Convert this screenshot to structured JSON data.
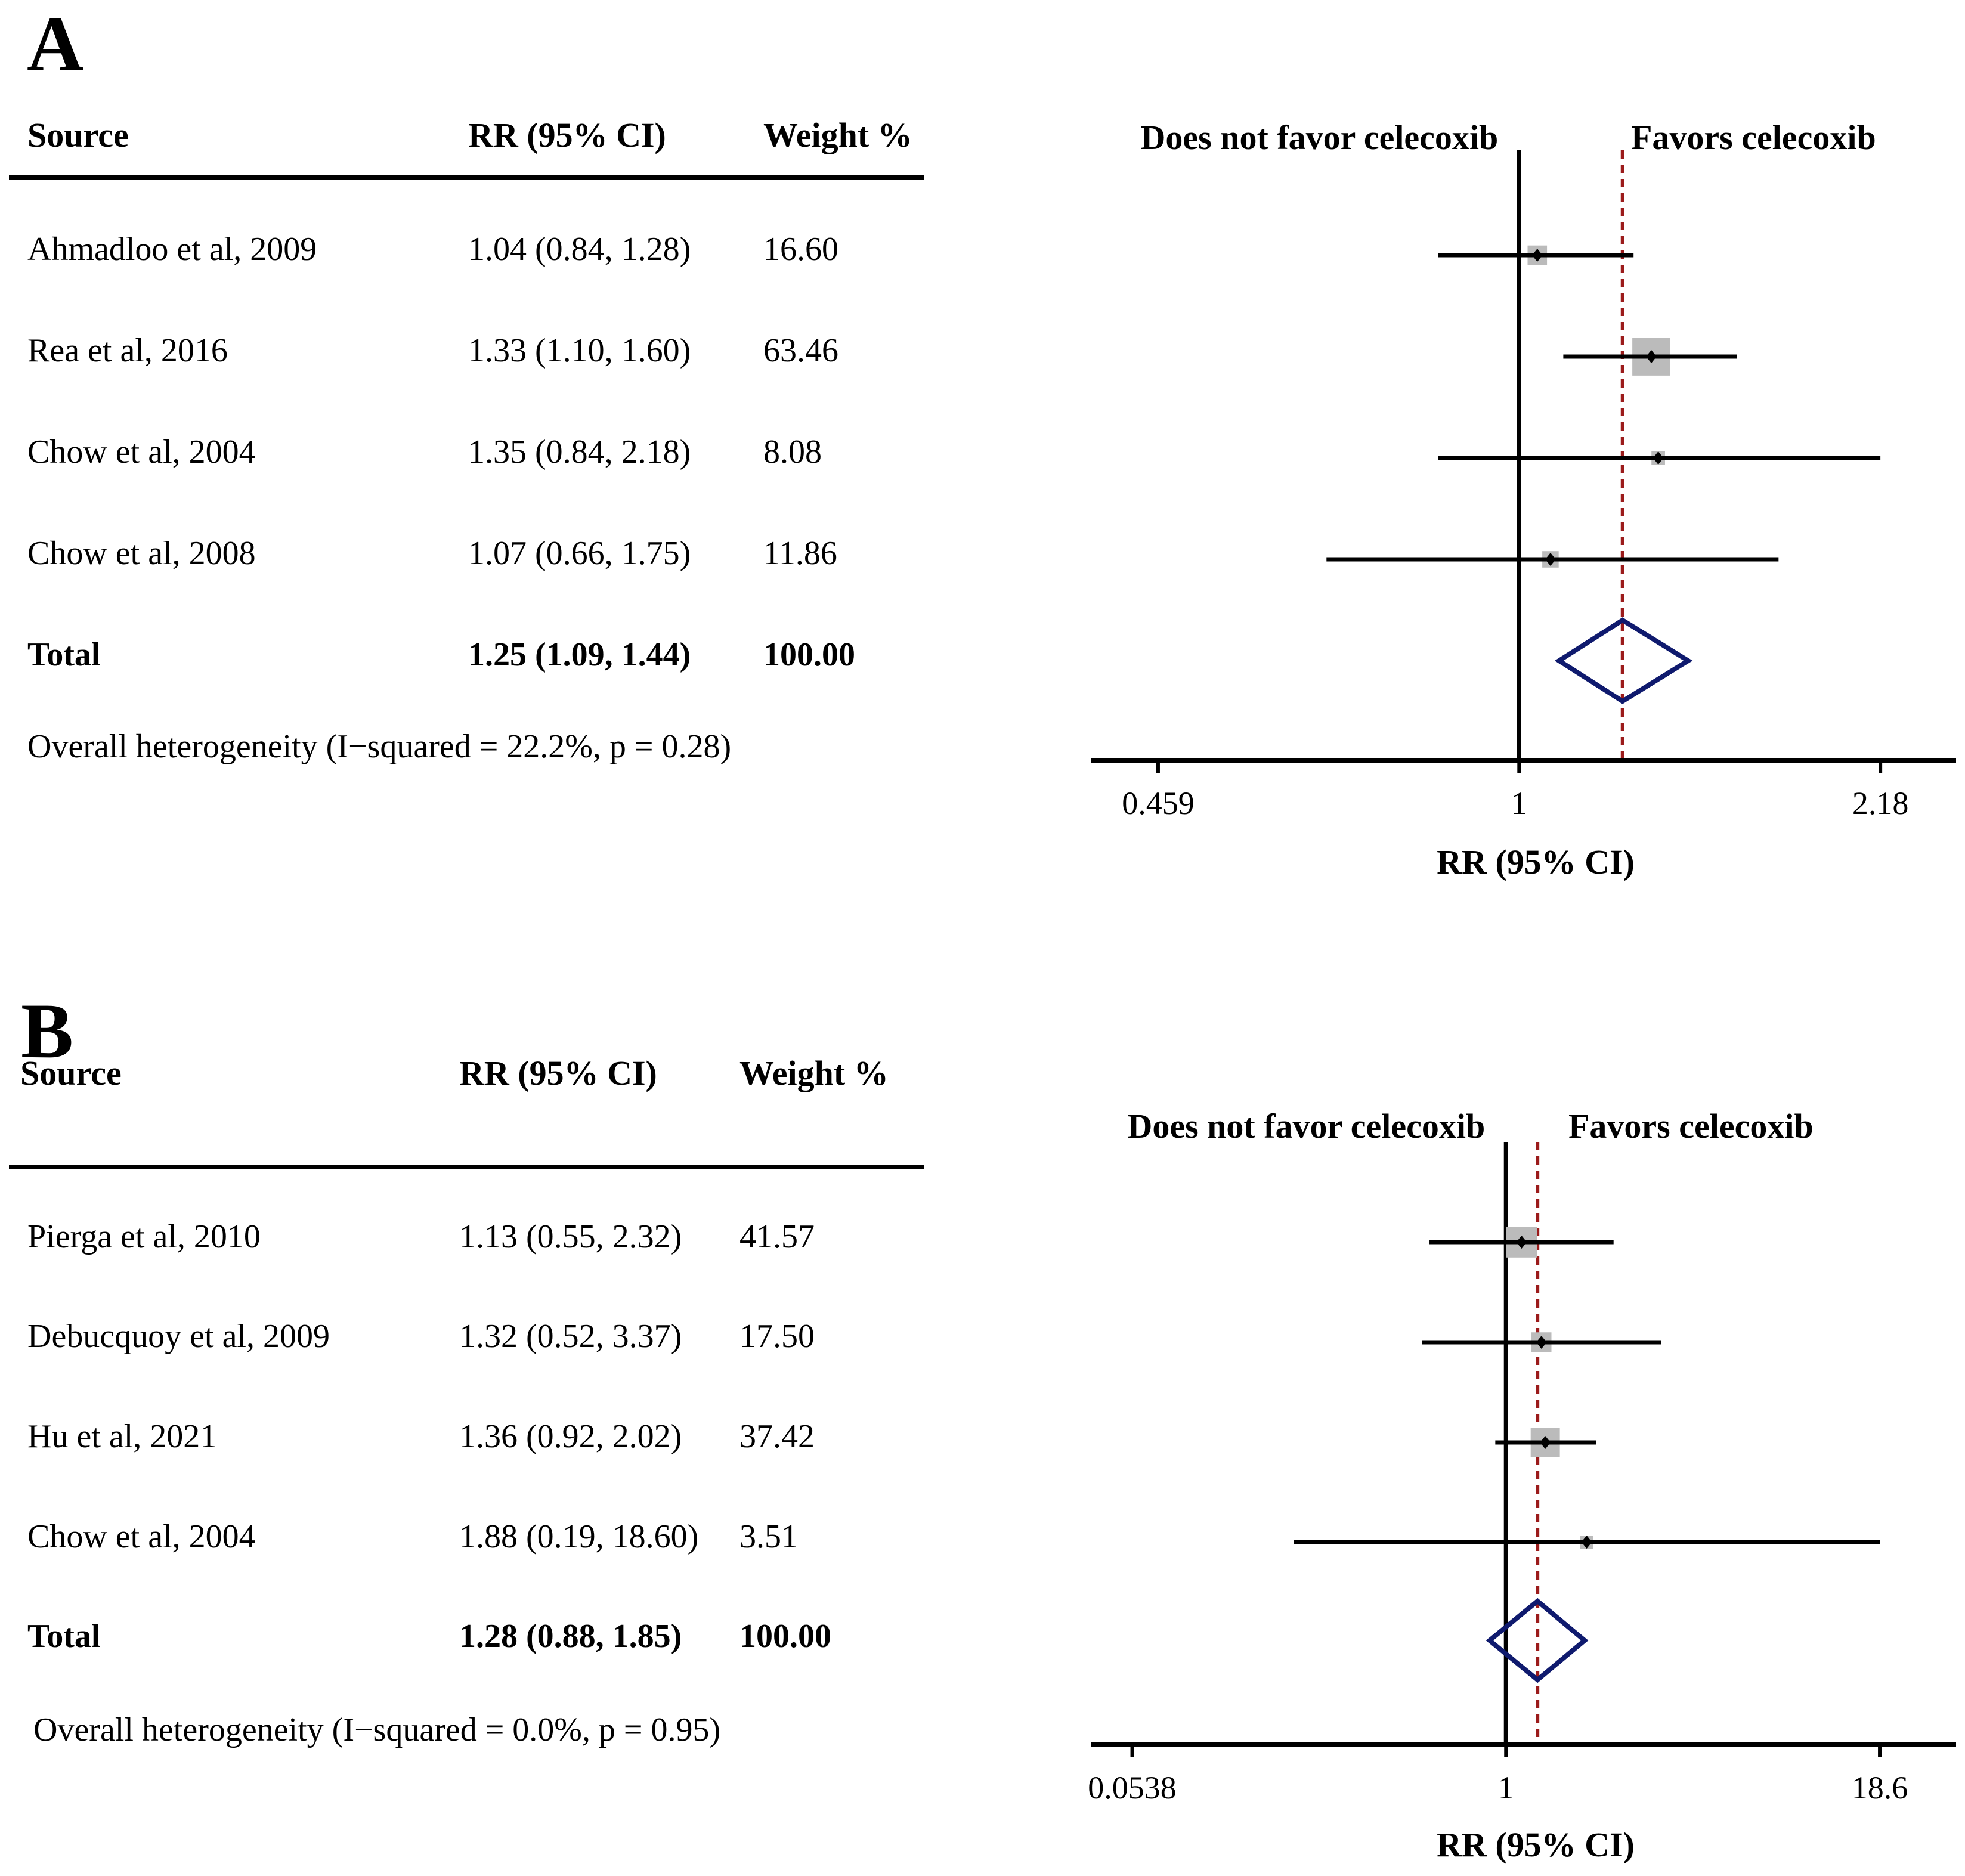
{
  "chart_data": [
    {
      "panel": "A",
      "type": "forest",
      "columns": {
        "source": "Source",
        "rr": "RR (95% CI)",
        "weight": "Weight %"
      },
      "direction_left": "Does not favor celecoxib",
      "direction_right": "Favors celecoxib",
      "rows": [
        {
          "source": "Ahmadloo et al, 2009",
          "rr_text": "1.04 (0.84, 1.28)",
          "weight": "16.60",
          "rr": 1.04,
          "lo": 0.84,
          "hi": 1.28
        },
        {
          "source": "Rea et al, 2016",
          "rr_text": "1.33 (1.10, 1.60)",
          "weight": "63.46",
          "rr": 1.33,
          "lo": 1.1,
          "hi": 1.6
        },
        {
          "source": "Chow et al, 2004",
          "rr_text": "1.35 (0.84, 2.18)",
          "weight": "8.08",
          "rr": 1.35,
          "lo": 0.84,
          "hi": 2.18
        },
        {
          "source": "Chow et al, 2008",
          "rr_text": "1.07 (0.66, 1.75)",
          "weight": "11.86",
          "rr": 1.07,
          "lo": 0.66,
          "hi": 1.75
        }
      ],
      "total": {
        "label": "Total",
        "rr_text": "1.25 (1.09, 1.44)",
        "weight": "100.00",
        "rr": 1.25,
        "lo": 1.09,
        "hi": 1.44
      },
      "heterogeneity": "Overall  heterogeneity (I−squared = 22.2%, p = 0.28)",
      "xaxis": {
        "label": "RR (95% CI)",
        "ticks": [
          0.459,
          1,
          2.18
        ],
        "tick_labels": [
          "0.459",
          "1",
          "2.18"
        ],
        "range": [
          0.4,
          2.55
        ],
        "scale": "log"
      }
    },
    {
      "panel": "B",
      "type": "forest",
      "columns": {
        "source": "Source",
        "rr": "RR (95% CI)",
        "weight": "Weight %"
      },
      "direction_left": "Does not favor celecoxib",
      "direction_right": "Favors celecoxib",
      "rows": [
        {
          "source": "Pierga et al, 2010",
          "rr_text": "1.13 (0.55, 2.32)",
          "weight": "41.57",
          "rr": 1.13,
          "lo": 0.55,
          "hi": 2.32
        },
        {
          "source": "Debucquoy et al, 2009",
          "rr_text": "1.32 (0.52, 3.37)",
          "weight": "17.50",
          "rr": 1.32,
          "lo": 0.52,
          "hi": 3.37
        },
        {
          "source": "Hu et al, 2021",
          "rr_text": "1.36 (0.92, 2.02)",
          "weight": "37.42",
          "rr": 1.36,
          "lo": 0.92,
          "hi": 2.02
        },
        {
          "source": "Chow et al, 2004",
          "rr_text": "1.88 (0.19, 18.60)",
          "weight": "3.51",
          "rr": 1.88,
          "lo": 0.19,
          "hi": 18.6
        }
      ],
      "total": {
        "label": "Total",
        "rr_text": "1.28 (0.88, 1.85)",
        "weight": "100.00",
        "rr": 1.28,
        "lo": 0.88,
        "hi": 1.85
      },
      "heterogeneity": "Overall  heterogeneity (I−squared = 0.0%, p = 0.95)",
      "xaxis": {
        "label": "RR (95% CI)",
        "ticks": [
          0.0538,
          1,
          18.6
        ],
        "tick_labels": [
          "0.0538",
          "1",
          "18.6"
        ],
        "range": [
          0.04,
          33
        ],
        "scale": "log"
      }
    }
  ],
  "colors": {
    "axis": "#000000",
    "ci_line": "#000000",
    "weight_box": "#bbbbbb",
    "point": "#000000",
    "summary_diamond": "#0f1a6e",
    "pooled_line": "#9b1b1b"
  }
}
